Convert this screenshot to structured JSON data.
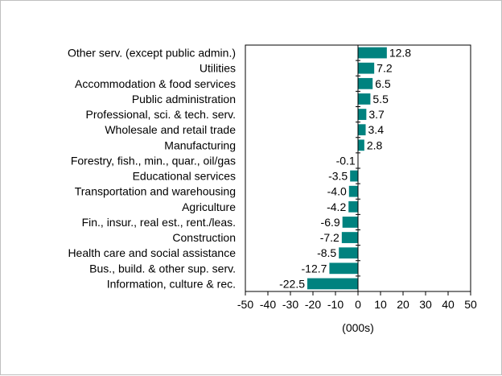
{
  "chart_data": {
    "type": "bar",
    "orientation": "horizontal",
    "categories": [
      "Other serv. (except public admin.)",
      "Utilities",
      "Accommodation & food services",
      "Public administration",
      "Professional, sci. & tech. serv.",
      "Wholesale and retail trade",
      "Manufacturing",
      "Forestry, fish., min., quar., oil/gas",
      "Educational services",
      "Transportation and warehousing",
      "Agriculture",
      "Fin., insur., real est., rent./leas.",
      "Construction",
      "Health care and social assistance",
      "Bus., build. & other sup. serv.",
      "Information, culture & rec."
    ],
    "values": [
      12.8,
      7.2,
      6.5,
      5.5,
      3.7,
      3.4,
      2.8,
      -0.1,
      -3.5,
      -4.0,
      -4.2,
      -6.9,
      -7.2,
      -8.5,
      -12.7,
      -22.5
    ],
    "data_labels": [
      "12.8",
      "7.2",
      "6.5",
      "5.5",
      "3.7",
      "3.4",
      "2.8",
      "-0.1",
      "-3.5",
      "-4.0",
      "-4.2",
      "-6.9",
      "-7.2",
      "-8.5",
      "-12.7",
      "-22.5"
    ],
    "xlabel": "(000s)",
    "xlim": [
      -50,
      50
    ],
    "xticks": [
      -50,
      -40,
      -30,
      -20,
      -10,
      0,
      10,
      20,
      30,
      40,
      50
    ],
    "grid": false,
    "bar_color": "#00827f"
  }
}
